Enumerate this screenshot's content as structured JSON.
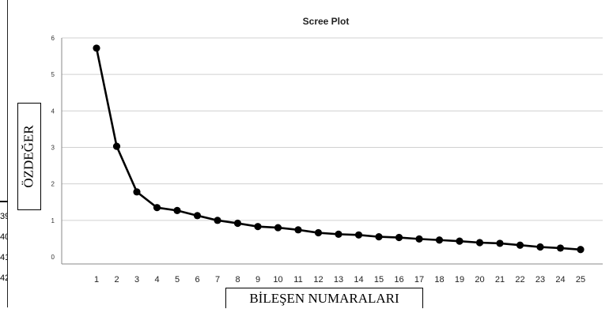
{
  "chart_data": {
    "type": "line",
    "title": "Scree Plot",
    "xlabel": "BİLEŞEN NUMARALARI",
    "ylabel": "ÖZDEĞER",
    "x": [
      1,
      2,
      3,
      4,
      5,
      6,
      7,
      8,
      9,
      10,
      11,
      12,
      13,
      14,
      15,
      16,
      17,
      18,
      19,
      20,
      21,
      22,
      23,
      24,
      25
    ],
    "series": [
      {
        "values": [
          5.72,
          3.03,
          1.78,
          1.35,
          1.27,
          1.13,
          1.0,
          0.92,
          0.83,
          0.8,
          0.74,
          0.66,
          0.62,
          0.6,
          0.55,
          0.53,
          0.49,
          0.46,
          0.43,
          0.39,
          0.37,
          0.32,
          0.27,
          0.24,
          0.2
        ]
      }
    ],
    "ylim": [
      0,
      6
    ],
    "yticks": [
      0,
      1,
      2,
      3,
      4,
      5,
      6
    ],
    "grid": "horizontal",
    "legend": "none",
    "colors": {
      "line": "#000000",
      "grid": "#d0d0d0",
      "marker": "#000000"
    }
  },
  "side_numbers": [
    "39",
    "40",
    "41",
    "42"
  ]
}
